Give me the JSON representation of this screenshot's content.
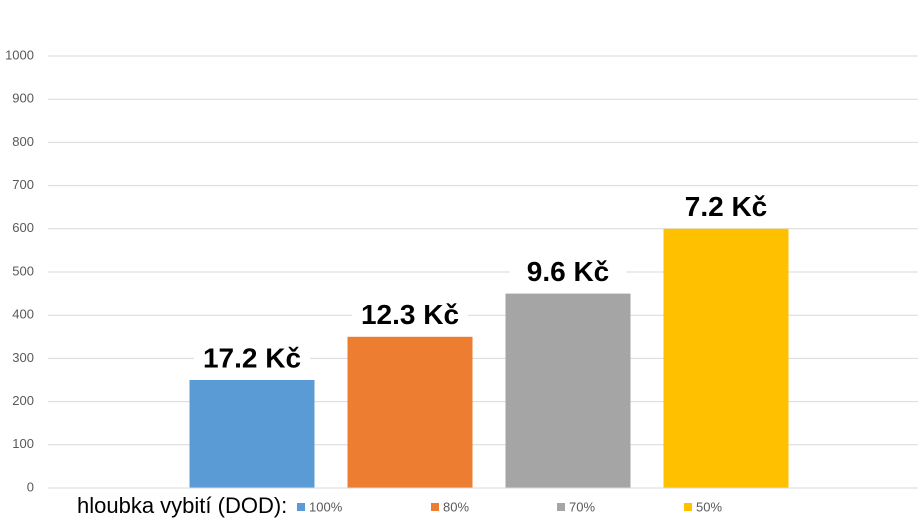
{
  "chart_data": {
    "type": "bar",
    "categories": [
      null
    ],
    "series": [
      {
        "name": "100%",
        "color": "#5b9bd5",
        "values": [
          250
        ],
        "label": "17.2 Kč"
      },
      {
        "name": "80%",
        "color": "#ed7d31",
        "values": [
          350
        ],
        "label": "12.3 Kč"
      },
      {
        "name": "70%",
        "color": "#a5a5a5",
        "values": [
          450
        ],
        "label": "9.6 Kč"
      },
      {
        "name": "50%",
        "color": "#ffc000",
        "values": [
          600
        ],
        "label": "7.2 Kč"
      }
    ],
    "legend_title": "hloubka vybití (DOD):",
    "legend": "bottom",
    "ylim": [
      0,
      1000
    ],
    "yticks": [
      0,
      100,
      200,
      300,
      400,
      500,
      600,
      700,
      800,
      900,
      1000
    ],
    "grid": true
  }
}
